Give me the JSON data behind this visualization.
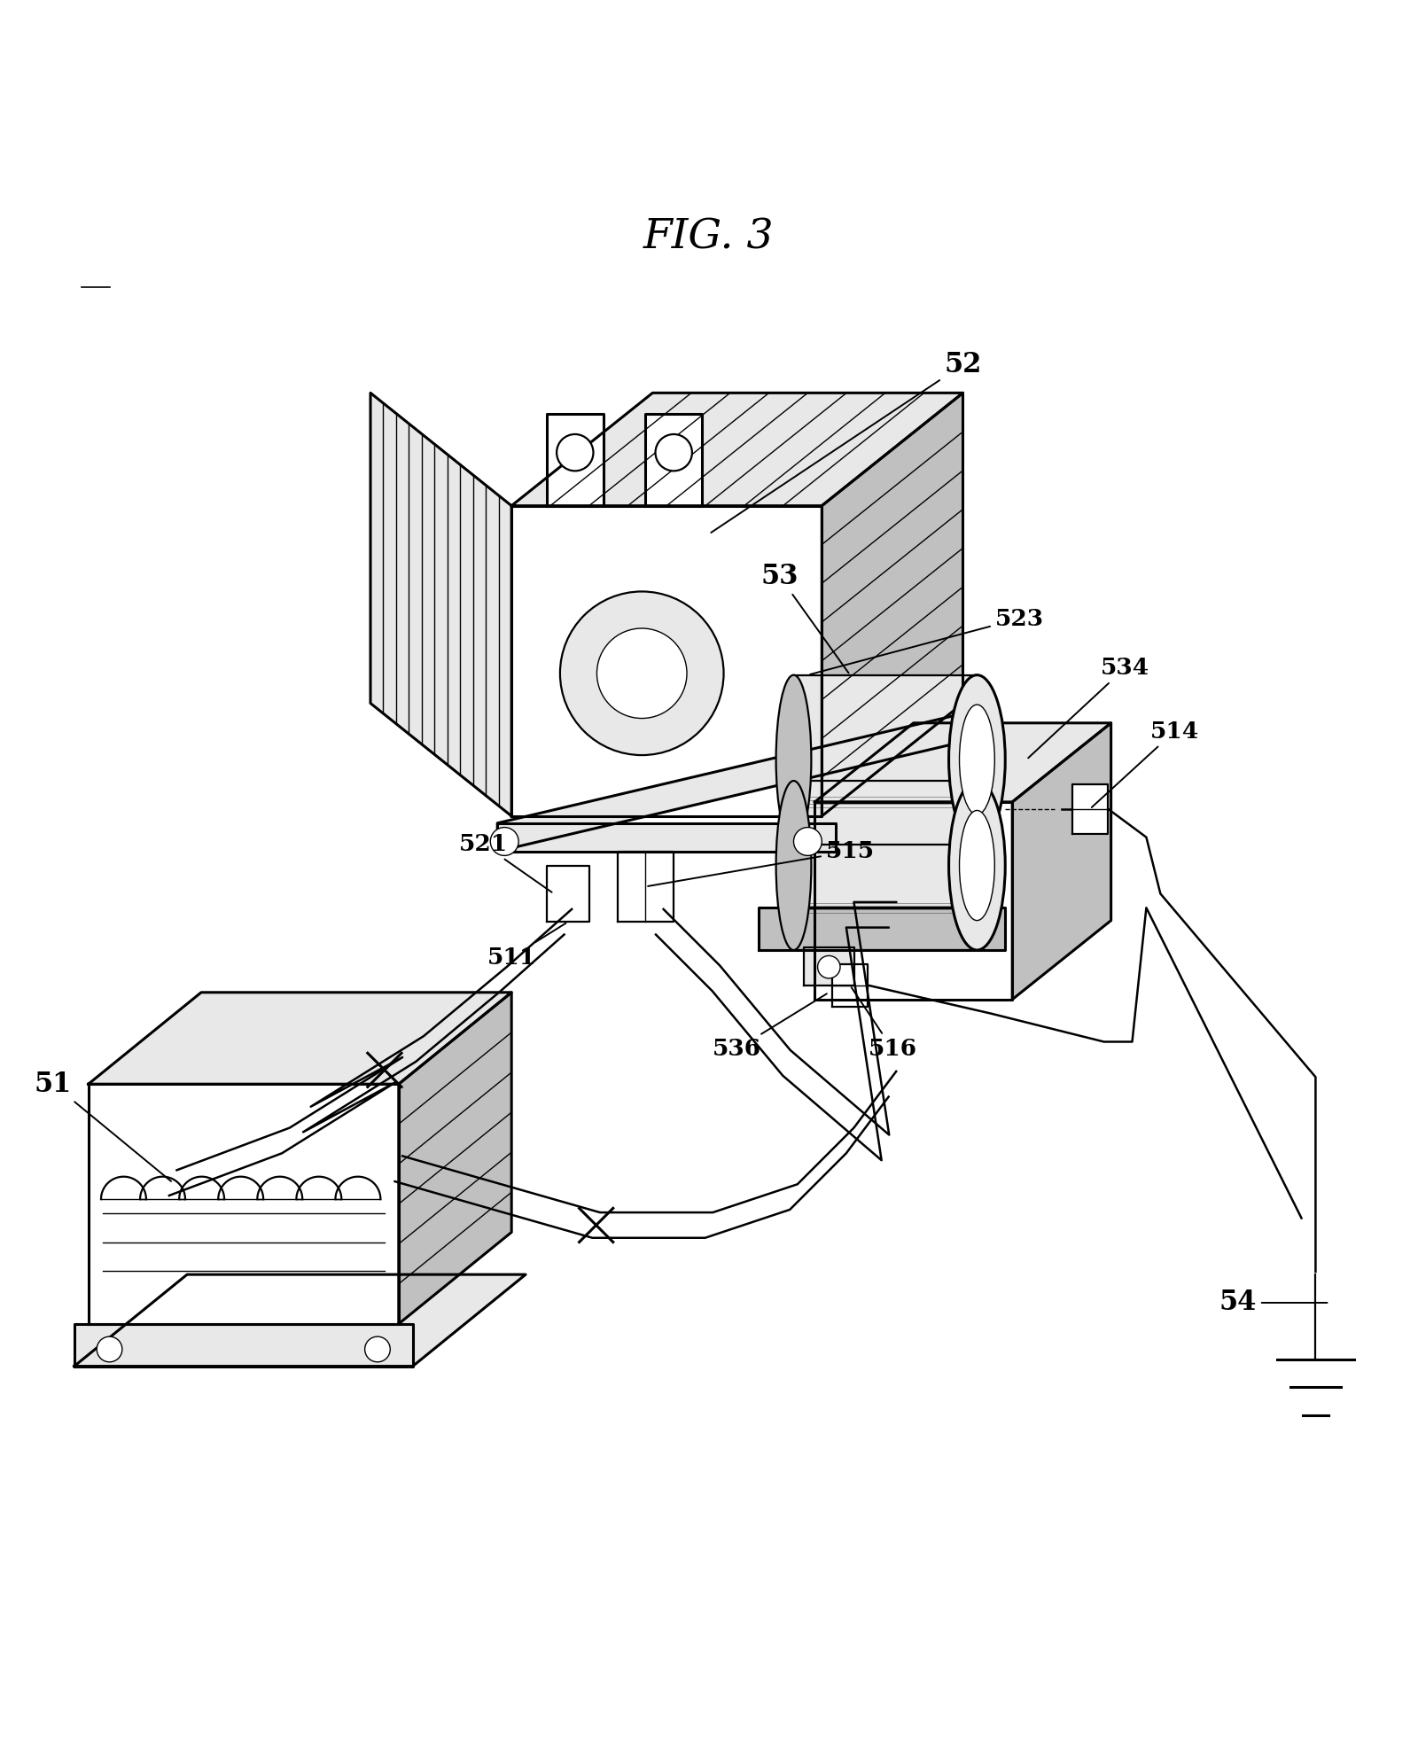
{
  "title": "FIG. 3",
  "bg_color": "#ffffff",
  "line_color": "#000000",
  "title_fontsize": 34,
  "label_fontsize_large": 22,
  "label_fontsize_small": 19,
  "fig_width": 16.0,
  "fig_height": 19.69,
  "transformer_bx": 0.36,
  "transformer_by": 0.54,
  "choke_bx": 0.06,
  "choke_by": 0.18,
  "cap_bx": 0.56,
  "cap_by": 0.44,
  "ground_gx": 0.93,
  "ground_gy": 0.155
}
